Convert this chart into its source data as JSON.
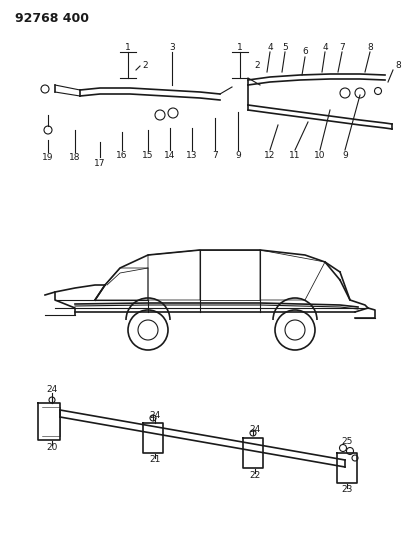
{
  "title": "92768 400",
  "bg_color": "#ffffff",
  "line_color": "#1a1a1a",
  "fig_width": 4.16,
  "fig_height": 5.33,
  "dpi": 100
}
